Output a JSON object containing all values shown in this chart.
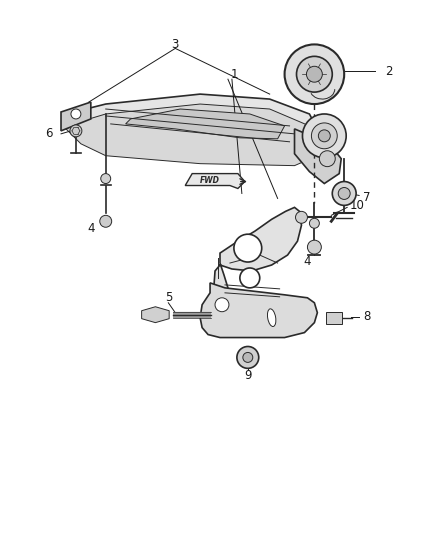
{
  "background_color": "#ffffff",
  "fig_width": 4.38,
  "fig_height": 5.33,
  "dpi": 100,
  "line_color": "#2a2a2a",
  "label_color": "#1a1a1a",
  "label_fontsize": 8.5
}
